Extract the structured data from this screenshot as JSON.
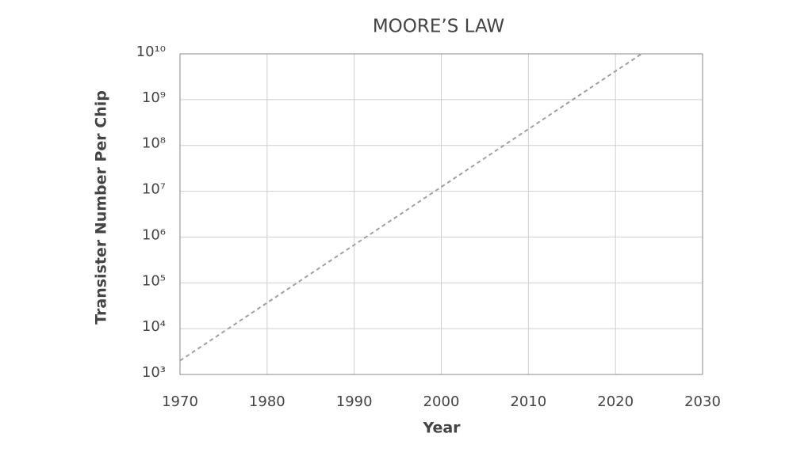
{
  "chart_data": {
    "type": "line",
    "title": "MOORE’S LAW",
    "x_label": "Year",
    "y_label": "Transister Number Per Chip",
    "x": [
      1970,
      2023
    ],
    "values": [
      2000,
      10000000000
    ],
    "color": "#a0a0a0",
    "line_style": "dashed",
    "xlim": [
      1970,
      2030
    ],
    "xticks": [
      1970,
      1980,
      1990,
      2000,
      2010,
      2020,
      2030
    ],
    "ylim": [
      1000,
      10000000000
    ],
    "y_scale": "log",
    "yticks": [
      {
        "value": 1000,
        "label": "10³"
      },
      {
        "value": 10000,
        "label": "10⁴"
      },
      {
        "value": 100000,
        "label": "10⁵"
      },
      {
        "value": 1000000,
        "label": "10⁶"
      },
      {
        "value": 10000000,
        "label": "10⁷"
      },
      {
        "value": 100000000,
        "label": "10⁸"
      },
      {
        "value": 1000000000,
        "label": "10⁹"
      },
      {
        "value": 10000000000,
        "label": "10¹⁰"
      }
    ],
    "grid": true
  }
}
